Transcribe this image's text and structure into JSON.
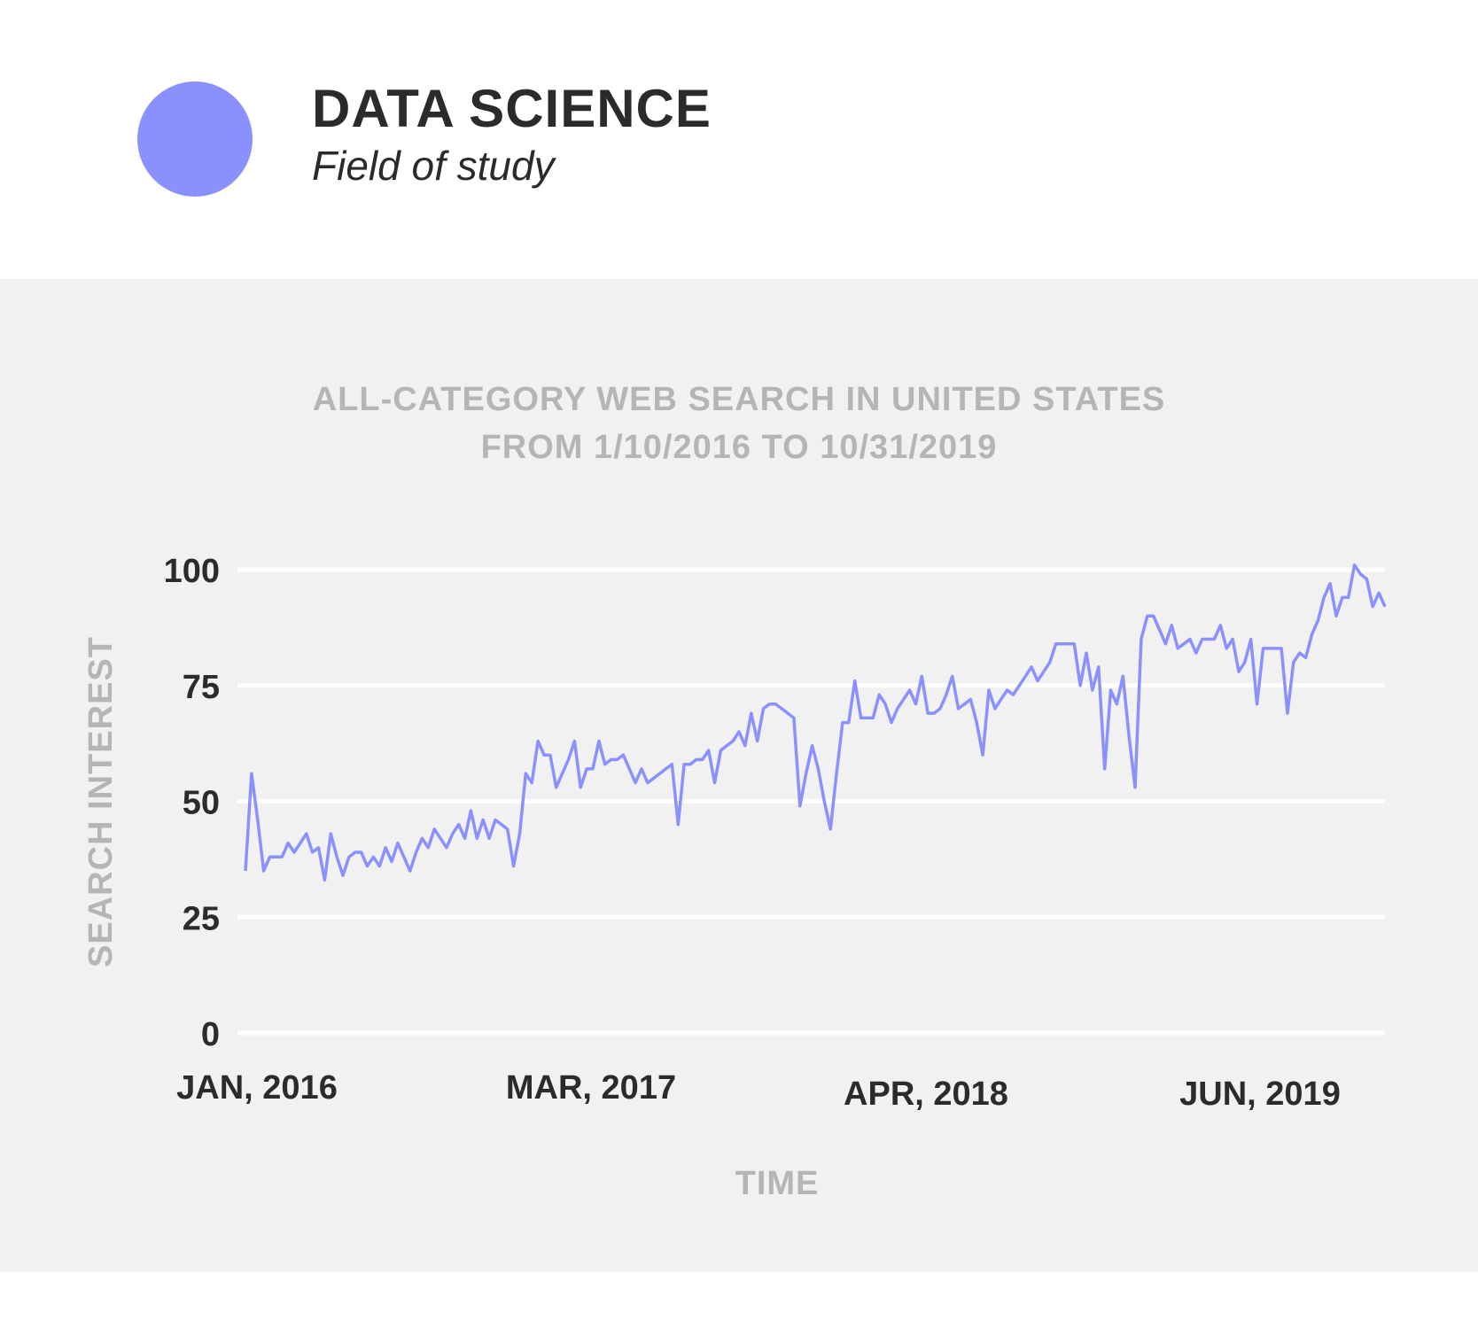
{
  "header": {
    "title": "DATA SCIENCE",
    "subtitle": "Field of study",
    "dot_color": "#8a91ff"
  },
  "chart_data": {
    "type": "line",
    "title": "ALL-CATEGORY WEB SEARCH IN UNITED STATES",
    "subtitle": "FROM 1/10/2016 TO 10/31/2019",
    "xlabel": "TIME",
    "ylabel": "SEARCH INTEREST",
    "ylim": [
      0,
      100
    ],
    "yticks": [
      0,
      25,
      50,
      75,
      100
    ],
    "xticks": [
      "JAN, 2016",
      "MAR, 2017",
      "APR, 2018",
      "JUN, 2019"
    ],
    "grid": true,
    "line_color": "#8a91ff",
    "series": [
      {
        "values": [
          35,
          56,
          46,
          35,
          38,
          38,
          38,
          41,
          39,
          41,
          43,
          39,
          40,
          33,
          43,
          38,
          34,
          38,
          39,
          39,
          36,
          38,
          36,
          40,
          37,
          41,
          38,
          35,
          39,
          42,
          40,
          44,
          42,
          40,
          43,
          45,
          42,
          48,
          42,
          46,
          42,
          46,
          45,
          44,
          36,
          43,
          56,
          54,
          63,
          60,
          60,
          53,
          56,
          59,
          63,
          53,
          57,
          57,
          63,
          58,
          59,
          59,
          60,
          57,
          54,
          57,
          54,
          55,
          56,
          57,
          58,
          45,
          58,
          58,
          59,
          59,
          61,
          54,
          61,
          62,
          63,
          65,
          62,
          69,
          63,
          70,
          71,
          71,
          70,
          69,
          68,
          49,
          56,
          62,
          57,
          50,
          44,
          56,
          67,
          67,
          76,
          68,
          68,
          68,
          73,
          71,
          67,
          70,
          72,
          74,
          71,
          77,
          69,
          69,
          70,
          73,
          77,
          70,
          71,
          72,
          67,
          60,
          74,
          70,
          72,
          74,
          73,
          75,
          77,
          79,
          76,
          78,
          80,
          84,
          84,
          84,
          84,
          75,
          82,
          74,
          79,
          57,
          74,
          71,
          77,
          64,
          53,
          85,
          90,
          90,
          87,
          84,
          88,
          83,
          84,
          85,
          82,
          85,
          85,
          85,
          88,
          83,
          85,
          78,
          80,
          85,
          71,
          83,
          83,
          83,
          83,
          69,
          80,
          82,
          81,
          86,
          89,
          94,
          97,
          90,
          94,
          94,
          101,
          99,
          98,
          92,
          95,
          92
        ]
      }
    ]
  }
}
